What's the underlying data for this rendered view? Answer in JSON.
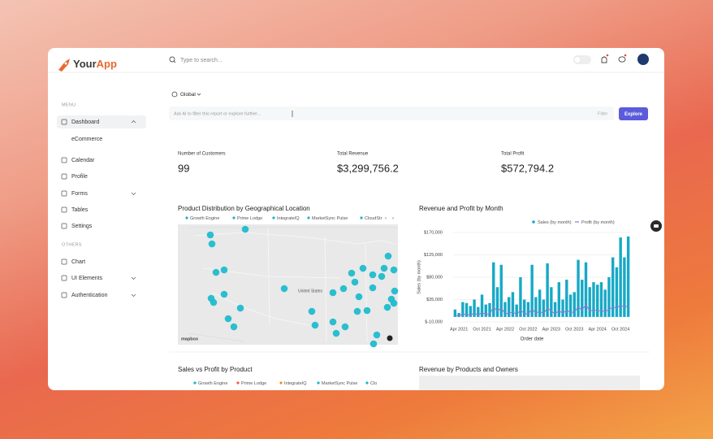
{
  "header": {
    "logo_prefix": "Your",
    "logo_suffix": "App",
    "search_placeholder": "Type to search..."
  },
  "sidebar": {
    "menu_label": "MENU",
    "menu_items": [
      "Dashboard",
      "eCommerce",
      "Calendar",
      "Profile",
      "Forms",
      "Tables",
      "Settings"
    ],
    "others_label": "OTHERS",
    "others_items": [
      "Chart",
      "UI Elements",
      "Authentication"
    ]
  },
  "toolbar": {
    "scope": "Global",
    "ask_placeholder": "Ask AI to filter this report or explore further...",
    "filter": "Filter",
    "button": "Explore"
  },
  "kpis": [
    {
      "label": "Number of Customers",
      "value": "99"
    },
    {
      "label": "Total Revenue",
      "value": "$3,299,756.2"
    },
    {
      "label": "Total Profit",
      "value": "$572,794.2"
    }
  ],
  "map_panel": {
    "title": "Product Distribution by Geographical Location",
    "legend": [
      "Growth Engine",
      "Prime Lodge",
      "IntegrateIQ",
      "MarketSync Pulse",
      "CloudStr"
    ],
    "country_label": "United States",
    "attribution": "mapbox"
  },
  "chart_data": {
    "type": "bar",
    "title": "Revenue and Profit by Month",
    "x_label": "Order date",
    "y_label": "Sales (by month)",
    "categories": [
      null,
      "Apr 2021",
      null,
      null,
      null,
      null,
      null,
      "Oct 2021",
      null,
      null,
      null,
      null,
      null,
      "Apr 2022",
      null,
      null,
      null,
      null,
      null,
      "Oct 2022",
      null,
      null,
      null,
      null,
      null,
      "Apr 2023",
      null,
      null,
      null,
      null,
      null,
      "Oct 2023",
      null,
      null,
      null,
      null,
      null,
      "Apr 2024",
      null,
      null,
      null,
      null,
      null,
      "Oct 2024",
      null,
      null
    ],
    "series": [
      {
        "name": "Sales (by month)",
        "color": "#17a9c6",
        "values": [
          15000,
          8000,
          30000,
          28000,
          22000,
          35000,
          20000,
          45000,
          25000,
          28000,
          110000,
          60000,
          105000,
          30000,
          40000,
          50000,
          25000,
          80000,
          35000,
          30000,
          105000,
          40000,
          55000,
          35000,
          108000,
          60000,
          30000,
          70000,
          35000,
          75000,
          45000,
          50000,
          115000,
          75000,
          110000,
          60000,
          70000,
          65000,
          70000,
          55000,
          80000,
          120000,
          100000,
          160000,
          120000,
          162000
        ]
      },
      {
        "name": "Profit (by month)",
        "color": "#9b6fd6",
        "values": [
          3000,
          2000,
          6000,
          5000,
          4000,
          8000,
          4000,
          9000,
          5000,
          6000,
          20000,
          12000,
          18000,
          6000,
          8000,
          10000,
          5000,
          14000,
          7000,
          6000,
          16000,
          8000,
          11000,
          7000,
          18000,
          12000,
          6000,
          13000,
          7000,
          14000,
          9000,
          10000,
          20000,
          14000,
          25000,
          12000,
          14000,
          13000,
          12000,
          11000,
          15000,
          20000,
          18000,
          24000,
          20000,
          22000
        ]
      }
    ],
    "ylim": [
      -10000,
      170000
    ],
    "yticks": [
      {
        "value": -10000,
        "label": "$-10,000"
      },
      {
        "value": 35000,
        "label": "$35,000"
      },
      {
        "value": 80000,
        "label": "$80,000"
      },
      {
        "value": 125000,
        "label": "$125,000"
      },
      {
        "value": 170000,
        "label": "$170,000"
      }
    ],
    "grid": true,
    "legend": "top-right"
  },
  "bottom_panels": [
    {
      "title": "Sales vs Profit by Product",
      "legend": [
        "Growth Engine",
        "Prime Lodge",
        "IntegrateIQ",
        "MarketSync Pulse",
        "Clo"
      ]
    },
    {
      "title": "Revenue by Products and Owners"
    }
  ]
}
